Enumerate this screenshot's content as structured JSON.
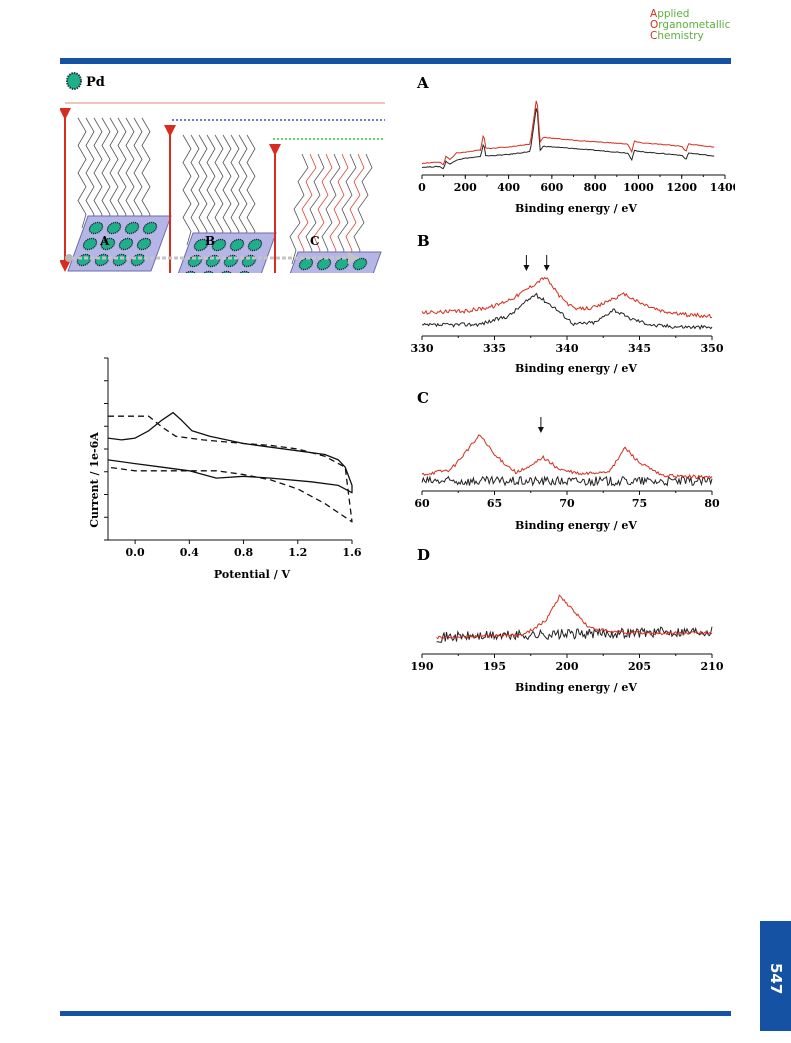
{
  "journal": {
    "line1_initial": "A",
    "line1_rest": "pplied",
    "line2_initial": "O",
    "line2_rest": "rganometallic",
    "line3_initial": "C",
    "line3_rest": "hemistry"
  },
  "page_number": "547",
  "colors": {
    "accent_blue": "#1552a3",
    "series_red": "#d62d20",
    "series_black": "#222222",
    "pd_green": "#1fb08a"
  },
  "scheme": {
    "legend": "Pd",
    "panels": [
      "A",
      "B",
      "C"
    ]
  },
  "chart_data": [
    {
      "id": "cv",
      "type": "line",
      "xlabel": "Potential / V",
      "ylabel": "Current / 1e-6A",
      "xticks": [
        "0.0",
        "0.4",
        "0.8",
        "1.2",
        "1.6"
      ],
      "xlim": [
        -0.2,
        1.6
      ],
      "series": [
        {
          "style": "solid",
          "points": [
            [
              -0.2,
              0.56
            ],
            [
              -0.1,
              0.55
            ],
            [
              0.0,
              0.56
            ],
            [
              0.1,
              0.6
            ],
            [
              0.2,
              0.66
            ],
            [
              0.28,
              0.7
            ],
            [
              0.34,
              0.66
            ],
            [
              0.42,
              0.6
            ],
            [
              0.55,
              0.57
            ],
            [
              0.8,
              0.53
            ],
            [
              1.0,
              0.51
            ],
            [
              1.2,
              0.49
            ],
            [
              1.4,
              0.47
            ],
            [
              1.5,
              0.44
            ],
            [
              1.55,
              0.4
            ],
            [
              1.6,
              0.3
            ],
            [
              1.6,
              0.26
            ],
            [
              1.5,
              0.3
            ],
            [
              1.3,
              0.32
            ],
            [
              1.0,
              0.34
            ],
            [
              0.8,
              0.35
            ],
            [
              0.6,
              0.34
            ],
            [
              0.4,
              0.38
            ],
            [
              0.2,
              0.4
            ],
            [
              0.0,
              0.42
            ],
            [
              -0.2,
              0.44
            ]
          ]
        },
        {
          "style": "dashed",
          "points": [
            [
              -0.2,
              0.68
            ],
            [
              0.0,
              0.68
            ],
            [
              0.1,
              0.68
            ],
            [
              0.2,
              0.62
            ],
            [
              0.3,
              0.57
            ],
            [
              0.5,
              0.55
            ],
            [
              0.8,
              0.53
            ],
            [
              1.0,
              0.52
            ],
            [
              1.2,
              0.5
            ],
            [
              1.4,
              0.46
            ],
            [
              1.55,
              0.4
            ],
            [
              1.6,
              0.1
            ],
            [
              1.5,
              0.15
            ],
            [
              1.4,
              0.2
            ],
            [
              1.2,
              0.28
            ],
            [
              1.0,
              0.33
            ],
            [
              0.8,
              0.36
            ],
            [
              0.6,
              0.38
            ],
            [
              0.4,
              0.38
            ],
            [
              0.2,
              0.38
            ],
            [
              0.0,
              0.38
            ],
            [
              -0.2,
              0.4
            ]
          ]
        }
      ]
    },
    {
      "id": "xps-A",
      "type": "line",
      "panel_label": "A",
      "xlabel": "Binding energy / eV",
      "xlim": [
        0,
        1400
      ],
      "xticks": [
        "0",
        "200",
        "400",
        "600",
        "800",
        "1000",
        "1200",
        "1400"
      ],
      "series": [
        {
          "color": "red",
          "points": [
            [
              0,
              0.1
            ],
            [
              80,
              0.12
            ],
            [
              100,
              0.08
            ],
            [
              110,
              0.2
            ],
            [
              130,
              0.15
            ],
            [
              160,
              0.24
            ],
            [
              200,
              0.25
            ],
            [
              270,
              0.28
            ],
            [
              285,
              0.5
            ],
            [
              295,
              0.3
            ],
            [
              400,
              0.32
            ],
            [
              500,
              0.36
            ],
            [
              531,
              1.0
            ],
            [
              545,
              0.38
            ],
            [
              560,
              0.45
            ],
            [
              700,
              0.41
            ],
            [
              950,
              0.36
            ],
            [
              970,
              0.25
            ],
            [
              980,
              0.4
            ],
            [
              1000,
              0.38
            ],
            [
              1200,
              0.33
            ],
            [
              1220,
              0.26
            ],
            [
              1230,
              0.36
            ],
            [
              1350,
              0.32
            ]
          ]
        },
        {
          "color": "black",
          "points": [
            [
              0,
              0.05
            ],
            [
              80,
              0.06
            ],
            [
              100,
              0.03
            ],
            [
              110,
              0.13
            ],
            [
              130,
              0.09
            ],
            [
              160,
              0.15
            ],
            [
              200,
              0.17
            ],
            [
              270,
              0.19
            ],
            [
              285,
              0.38
            ],
            [
              295,
              0.2
            ],
            [
              400,
              0.22
            ],
            [
              500,
              0.26
            ],
            [
              531,
              0.9
            ],
            [
              545,
              0.27
            ],
            [
              560,
              0.33
            ],
            [
              700,
              0.3
            ],
            [
              950,
              0.24
            ],
            [
              970,
              0.15
            ],
            [
              980,
              0.28
            ],
            [
              1000,
              0.26
            ],
            [
              1200,
              0.21
            ],
            [
              1220,
              0.15
            ],
            [
              1230,
              0.24
            ],
            [
              1350,
              0.2
            ]
          ]
        }
      ]
    },
    {
      "id": "xps-B",
      "type": "line",
      "panel_label": "B",
      "xlabel": "Binding energy / eV",
      "xlim": [
        330,
        350
      ],
      "xticks": [
        "330",
        "335",
        "340",
        "345",
        "350"
      ],
      "series": [
        {
          "color": "red",
          "points": [
            [
              330,
              0.3
            ],
            [
              333,
              0.32
            ],
            [
              335,
              0.4
            ],
            [
              336.5,
              0.55
            ],
            [
              337.5,
              0.7
            ],
            [
              338.5,
              0.85
            ],
            [
              339.5,
              0.55
            ],
            [
              340.5,
              0.35
            ],
            [
              342,
              0.38
            ],
            [
              343,
              0.5
            ],
            [
              344,
              0.58
            ],
            [
              345,
              0.45
            ],
            [
              346.5,
              0.32
            ],
            [
              348,
              0.27
            ],
            [
              350,
              0.24
            ]
          ]
        },
        {
          "color": "black",
          "points": [
            [
              330,
              0.1
            ],
            [
              334,
              0.12
            ],
            [
              336,
              0.25
            ],
            [
              337.8,
              0.58
            ],
            [
              339,
              0.4
            ],
            [
              340.5,
              0.12
            ],
            [
              342,
              0.15
            ],
            [
              343.2,
              0.35
            ],
            [
              344.2,
              0.22
            ],
            [
              346,
              0.1
            ],
            [
              348,
              0.08
            ],
            [
              350,
              0.07
            ]
          ]
        }
      ],
      "arrows": [
        337.2,
        338.6
      ]
    },
    {
      "id": "xps-C",
      "type": "line",
      "panel_label": "C",
      "xlabel": "Binding energy / eV",
      "xlim": [
        60,
        80
      ],
      "xticks": [
        "60",
        "65",
        "70",
        "75",
        "80"
      ],
      "series": [
        {
          "color": "red",
          "points": [
            [
              60,
              0.22
            ],
            [
              62,
              0.3
            ],
            [
              63,
              0.6
            ],
            [
              64,
              0.9
            ],
            [
              65,
              0.55
            ],
            [
              66.5,
              0.25
            ],
            [
              67.5,
              0.35
            ],
            [
              68.3,
              0.52
            ],
            [
              69.5,
              0.3
            ],
            [
              71,
              0.22
            ],
            [
              73,
              0.28
            ],
            [
              74,
              0.68
            ],
            [
              75,
              0.42
            ],
            [
              76.5,
              0.2
            ],
            [
              78,
              0.18
            ],
            [
              80,
              0.17
            ]
          ]
        },
        {
          "color": "black",
          "points": [
            [
              60,
              0.1
            ],
            [
              80,
              0.1
            ]
          ]
        }
      ],
      "arrows": [
        68.2
      ]
    },
    {
      "id": "xps-D",
      "type": "line",
      "panel_label": "D",
      "xlabel": "Binding energy / eV",
      "xlim": [
        190,
        210
      ],
      "xticks": [
        "190",
        "195",
        "200",
        "205",
        "210"
      ],
      "series": [
        {
          "color": "red",
          "points": [
            [
              191,
              0.2
            ],
            [
              195,
              0.22
            ],
            [
              197,
              0.24
            ],
            [
              198.5,
              0.45
            ],
            [
              199.5,
              0.85
            ],
            [
              200.5,
              0.6
            ],
            [
              201.5,
              0.35
            ],
            [
              203,
              0.28
            ],
            [
              206,
              0.26
            ],
            [
              210,
              0.27
            ]
          ]
        },
        {
          "color": "black",
          "points": [
            [
              191,
              0.2
            ],
            [
              210,
              0.3
            ]
          ]
        }
      ]
    }
  ]
}
